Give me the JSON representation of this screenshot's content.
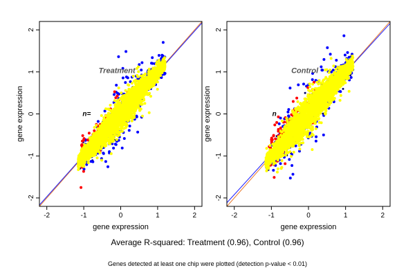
{
  "colors": {
    "yellow": "#ffff00",
    "blue": "#0000ff",
    "red": "#ff0000",
    "navy": "#000066",
    "diag_orange": "#e8782a",
    "diag_blue": "#1a1aff",
    "title_gray": "#555555"
  },
  "caption": {
    "main": "Average R-squared: Treatment (0.96), Control (0.96)",
    "note": "Genes detected at least one chip were plotted (detection p-value < 0.01)"
  },
  "chart_data": [
    {
      "type": "scatter",
      "title": "Treatment",
      "fragment_label": "n=",
      "xlabel": "gene expression",
      "ylabel": "gene expression",
      "xlim": [
        -2.2,
        2.2
      ],
      "ylim": [
        -2.2,
        2.2
      ],
      "xticks": [
        -2,
        -1,
        0,
        1,
        2
      ],
      "yticks": [
        -2,
        -1,
        0,
        1,
        2
      ],
      "grid": false,
      "reference_lines": [
        {
          "name": "identity",
          "slope": 1,
          "intercept": 0,
          "color": "#e8782a"
        },
        {
          "name": "fit",
          "slope": 0.985,
          "intercept": 0.0,
          "color": "#1a1aff"
        }
      ],
      "point_cloud": {
        "x_range": [
          -1.15,
          1.2
        ],
        "main_spread": 0.13,
        "outlier_spread": 0.35,
        "outlier_bias": 0.0
      },
      "series": [
        {
          "color": "yellow"
        },
        {
          "color": "blue"
        },
        {
          "color": "red"
        },
        {
          "color": "navy"
        }
      ]
    },
    {
      "type": "scatter",
      "title": "Control",
      "fragment_label": "n",
      "xlabel": "gene expression",
      "ylabel": "gene expression",
      "xlim": [
        -2.2,
        2.2
      ],
      "ylim": [
        -2.2,
        2.2
      ],
      "xticks": [
        -2,
        -1,
        0,
        1,
        2
      ],
      "yticks": [
        -2,
        -1,
        0,
        1,
        2
      ],
      "grid": false,
      "reference_lines": [
        {
          "name": "identity",
          "slope": 1,
          "intercept": 0,
          "color": "#e8782a"
        },
        {
          "name": "fit",
          "slope": 0.97,
          "intercept": 0.02,
          "color": "#1a1aff"
        }
      ],
      "point_cloud": {
        "x_range": [
          -1.15,
          1.2
        ],
        "main_spread": 0.14,
        "outlier_spread": 0.38,
        "outlier_bias": 0.08
      },
      "series": [
        {
          "color": "yellow"
        },
        {
          "color": "blue"
        },
        {
          "color": "red"
        },
        {
          "color": "navy"
        }
      ]
    }
  ]
}
